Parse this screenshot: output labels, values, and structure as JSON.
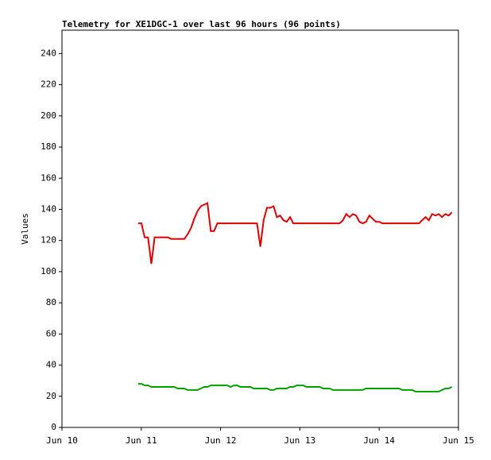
{
  "chart_data": {
    "type": "line",
    "title": "Telemetry for XE1DGC-1 over last 96 hours (96 points)",
    "y_label": "Values",
    "x": [
      0.96,
      1.002,
      1.043,
      1.085,
      1.127,
      1.168,
      1.21,
      1.252,
      1.293,
      1.335,
      1.377,
      1.418,
      1.46,
      1.502,
      1.543,
      1.585,
      1.627,
      1.668,
      1.71,
      1.752,
      1.793,
      1.835,
      1.877,
      1.918,
      1.96,
      2.002,
      2.043,
      2.085,
      2.127,
      2.168,
      2.21,
      2.252,
      2.293,
      2.335,
      2.377,
      2.418,
      2.46,
      2.502,
      2.543,
      2.585,
      2.627,
      2.668,
      2.71,
      2.752,
      2.793,
      2.835,
      2.877,
      2.918,
      2.96,
      3.002,
      3.043,
      3.085,
      3.127,
      3.168,
      3.21,
      3.252,
      3.293,
      3.335,
      3.377,
      3.418,
      3.46,
      3.502,
      3.543,
      3.585,
      3.627,
      3.668,
      3.71,
      3.752,
      3.793,
      3.835,
      3.877,
      3.918,
      3.96,
      4.002,
      4.043,
      4.085,
      4.127,
      4.168,
      4.21,
      4.252,
      4.293,
      4.335,
      4.377,
      4.418,
      4.46,
      4.502,
      4.543,
      4.585,
      4.627,
      4.668,
      4.71,
      4.752,
      4.793,
      4.835,
      4.877,
      4.918
    ],
    "series": [
      {
        "color": "#e00000",
        "values": [
          131,
          131,
          122,
          122,
          105,
          122,
          122,
          122,
          122,
          122,
          121,
          121,
          121,
          121,
          121,
          124,
          128,
          134,
          139,
          142,
          143,
          144,
          126,
          126,
          131,
          131,
          131,
          131,
          131,
          131,
          131,
          131,
          131,
          131,
          131,
          131,
          131,
          116,
          133,
          141,
          141,
          142,
          135,
          136,
          133,
          132,
          135,
          131,
          131,
          131,
          131,
          131,
          131,
          131,
          131,
          131,
          131,
          131,
          131,
          131,
          131,
          131,
          133,
          137,
          135,
          137,
          136,
          132,
          131,
          132,
          136,
          134,
          132,
          132,
          131,
          131,
          131,
          131,
          131,
          131,
          131,
          131,
          131,
          131,
          131,
          131,
          133,
          135,
          133,
          137,
          136,
          137,
          135,
          137,
          136,
          138
        ]
      },
      {
        "color": "#00a000",
        "values": [
          28,
          28,
          27,
          27,
          26,
          26,
          26,
          26,
          26,
          26,
          26,
          26,
          25,
          25,
          25,
          24,
          24,
          24,
          24,
          25,
          26,
          26,
          27,
          27,
          27,
          27,
          27,
          27,
          26,
          27,
          27,
          26,
          26,
          26,
          26,
          25,
          25,
          25,
          25,
          25,
          24,
          24,
          25,
          25,
          25,
          25,
          26,
          26,
          27,
          27,
          27,
          26,
          26,
          26,
          26,
          26,
          25,
          25,
          25,
          24,
          24,
          24,
          24,
          24,
          24,
          24,
          24,
          24,
          24,
          25,
          25,
          25,
          25,
          25,
          25,
          25,
          25,
          25,
          25,
          25,
          24,
          24,
          24,
          24,
          23,
          23,
          23,
          23,
          23,
          23,
          23,
          23,
          24,
          25,
          25,
          26
        ]
      }
    ],
    "xlim": [
      0,
      5
    ],
    "xticks": [
      {
        "value": 0,
        "label": "Jun 10"
      },
      {
        "value": 1,
        "label": "Jun 11"
      },
      {
        "value": 2,
        "label": "Jun 12"
      },
      {
        "value": 3,
        "label": "Jun 13"
      },
      {
        "value": 4,
        "label": "Jun 14"
      },
      {
        "value": 5,
        "label": "Jun 15"
      }
    ],
    "ylim": [
      0,
      255
    ],
    "yticks": [
      0,
      20,
      40,
      60,
      80,
      100,
      120,
      140,
      160,
      180,
      200,
      220,
      240
    ]
  }
}
